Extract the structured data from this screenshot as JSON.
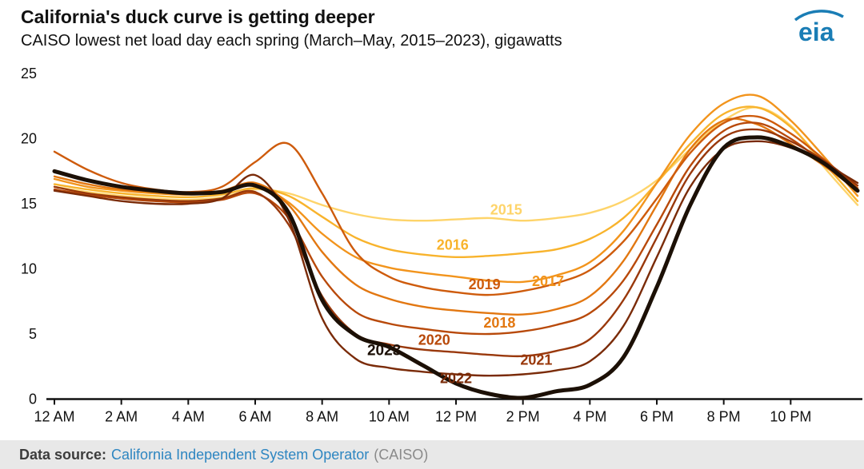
{
  "header": {
    "title": "California's duck curve is getting deeper",
    "subtitle": "CAISO lowest net load day each spring (March–May, 2015–2023), gigawatts",
    "logo_text": "eia"
  },
  "footer": {
    "label": "Data source:",
    "link": "California Independent System Operator",
    "suffix": "(CAISO)"
  },
  "colors": {
    "logo": "#1a7db5",
    "link": "#2e86c1",
    "footer_text": "#3c3c3c",
    "footer_muted": "#8a8a8a",
    "axis": "#111111"
  },
  "chart_data": {
    "type": "line",
    "title": "California's duck curve is getting deeper",
    "subtitle": "CAISO lowest net load day each spring (March–May, 2015–2023), gigawatts",
    "unit": "gigawatts",
    "xlabel": "",
    "ylabel": "gigawatts",
    "ylim": [
      0,
      25
    ],
    "y_ticks": [
      0,
      5,
      10,
      15,
      20,
      25
    ],
    "grid": false,
    "legend_position": "inline-labels",
    "x_hours": [
      0,
      1,
      2,
      3,
      4,
      5,
      6,
      7,
      8,
      9,
      10,
      11,
      12,
      13,
      14,
      15,
      16,
      17,
      18,
      19,
      20,
      21,
      22,
      23,
      24
    ],
    "x_tick_hours": [
      0,
      2,
      4,
      6,
      8,
      10,
      12,
      14,
      16,
      18,
      20,
      22
    ],
    "x_tick_labels": [
      "12 AM",
      "2 AM",
      "4 AM",
      "6 AM",
      "8 AM",
      "10 AM",
      "12 PM",
      "2 PM",
      "4 PM",
      "6 PM",
      "8 PM",
      "10 PM"
    ],
    "series": [
      {
        "name": "2015",
        "color": "#fed46a",
        "line_width": 2.4,
        "label": {
          "hour": 13.5,
          "value": 14.55,
          "bold": false
        },
        "values": [
          16.3,
          15.9,
          15.6,
          15.4,
          15.3,
          15.5,
          16.1,
          15.8,
          14.9,
          14.2,
          13.8,
          13.7,
          13.8,
          13.9,
          13.7,
          13.9,
          14.3,
          15.2,
          16.8,
          19.2,
          21.4,
          22.4,
          21.0,
          17.8,
          14.9
        ]
      },
      {
        "name": "2016",
        "color": "#f8b32c",
        "line_width": 2.4,
        "label": {
          "hour": 11.9,
          "value": 11.85,
          "bold": false
        },
        "values": [
          16.5,
          16.1,
          15.8,
          15.6,
          15.5,
          15.7,
          16.2,
          15.6,
          14.0,
          12.4,
          11.5,
          11.1,
          10.9,
          11.0,
          11.2,
          11.5,
          12.3,
          13.9,
          16.6,
          19.6,
          21.9,
          22.4,
          20.9,
          18.1,
          15.2
        ]
      },
      {
        "name": "2017",
        "color": "#f2941c",
        "line_width": 2.4,
        "label": {
          "hour": 14.75,
          "value": 9.05,
          "bold": false
        },
        "values": [
          16.9,
          16.3,
          16.0,
          15.8,
          15.7,
          15.9,
          16.4,
          15.1,
          12.7,
          10.9,
          10.1,
          9.7,
          9.4,
          9.1,
          9.0,
          9.5,
          10.5,
          12.9,
          16.6,
          20.3,
          22.7,
          23.3,
          21.4,
          18.6,
          15.6
        ]
      },
      {
        "name": "2018",
        "color": "#e27711",
        "line_width": 2.4,
        "label": {
          "hour": 13.3,
          "value": 5.85,
          "bold": false
        },
        "values": [
          17.1,
          16.5,
          16.1,
          15.9,
          15.8,
          16.0,
          16.6,
          14.9,
          11.3,
          8.8,
          7.7,
          7.1,
          6.8,
          6.6,
          6.5,
          6.9,
          7.9,
          10.6,
          14.9,
          19.2,
          21.4,
          21.1,
          19.6,
          17.9,
          16.0
        ]
      },
      {
        "name": "2019",
        "color": "#ce5b0c",
        "line_width": 2.4,
        "label": {
          "hour": 12.85,
          "value": 8.8,
          "bold": false
        },
        "values": [
          19.0,
          17.6,
          16.6,
          16.1,
          15.9,
          16.3,
          18.2,
          19.6,
          15.8,
          11.3,
          9.4,
          8.6,
          8.2,
          8.0,
          8.3,
          8.9,
          9.9,
          12.1,
          15.4,
          18.9,
          21.2,
          21.7,
          20.4,
          18.4,
          16.2
        ]
      },
      {
        "name": "2020",
        "color": "#b8490a",
        "line_width": 2.4,
        "label": {
          "hour": 11.35,
          "value": 4.55,
          "bold": false
        },
        "values": [
          16.1,
          15.7,
          15.4,
          15.2,
          15.1,
          15.3,
          15.8,
          13.9,
          9.4,
          6.7,
          5.8,
          5.4,
          5.1,
          5.0,
          5.2,
          5.7,
          6.6,
          9.1,
          13.4,
          17.9,
          20.6,
          21.2,
          20.0,
          18.1,
          16.1
        ]
      },
      {
        "name": "2021",
        "color": "#99380b",
        "line_width": 2.4,
        "label": {
          "hour": 14.4,
          "value": 3.0,
          "bold": false
        },
        "values": [
          16.3,
          15.8,
          15.5,
          15.3,
          15.2,
          15.4,
          15.9,
          13.4,
          7.9,
          5.0,
          4.2,
          3.8,
          3.6,
          3.4,
          3.3,
          3.7,
          4.6,
          7.6,
          12.4,
          17.3,
          20.1,
          20.7,
          19.8,
          18.3,
          16.4
        ]
      },
      {
        "name": "2022",
        "color": "#7a2b08",
        "line_width": 2.4,
        "label": {
          "hour": 12.0,
          "value": 1.6,
          "bold": false
        },
        "values": [
          16.0,
          15.6,
          15.2,
          15.0,
          15.0,
          15.4,
          17.2,
          13.8,
          6.2,
          3.1,
          2.4,
          2.1,
          1.9,
          1.8,
          1.9,
          2.2,
          2.9,
          5.6,
          10.9,
          16.3,
          19.2,
          19.8,
          19.3,
          18.1,
          16.6
        ]
      },
      {
        "name": "2023",
        "color": "#1c1006",
        "line_width": 5,
        "label": {
          "hour": 9.85,
          "value": 3.75,
          "bold": true
        },
        "values": [
          17.5,
          16.8,
          16.3,
          16.0,
          15.8,
          15.9,
          16.4,
          14.3,
          7.6,
          4.9,
          4.0,
          2.6,
          1.2,
          0.4,
          0.1,
          0.6,
          1.1,
          3.2,
          8.6,
          14.9,
          19.3,
          20.1,
          19.4,
          18.1,
          16.0
        ]
      }
    ]
  }
}
